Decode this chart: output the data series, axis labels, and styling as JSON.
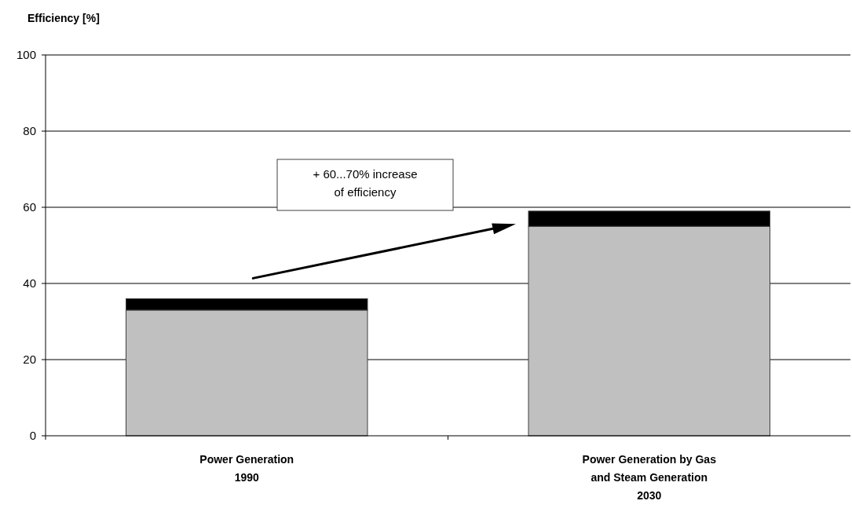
{
  "chart_data": {
    "type": "bar",
    "ylabel": "Efficiency [%]",
    "categories": [
      "Power Generation\n1990",
      "Power Generation by Gas\nand Steam Generation\n2030"
    ],
    "series": [
      {
        "color": "#c0c0c0",
        "values": [
          33,
          55
        ]
      },
      {
        "color": "#000000",
        "values": [
          3,
          4
        ]
      }
    ],
    "stacked": true,
    "ylim": [
      0,
      100
    ],
    "yticks": [
      0,
      20,
      40,
      60,
      80,
      100
    ],
    "grid": "y",
    "annotations": [
      "+ 60...70% increase\nof efficiency"
    ]
  }
}
